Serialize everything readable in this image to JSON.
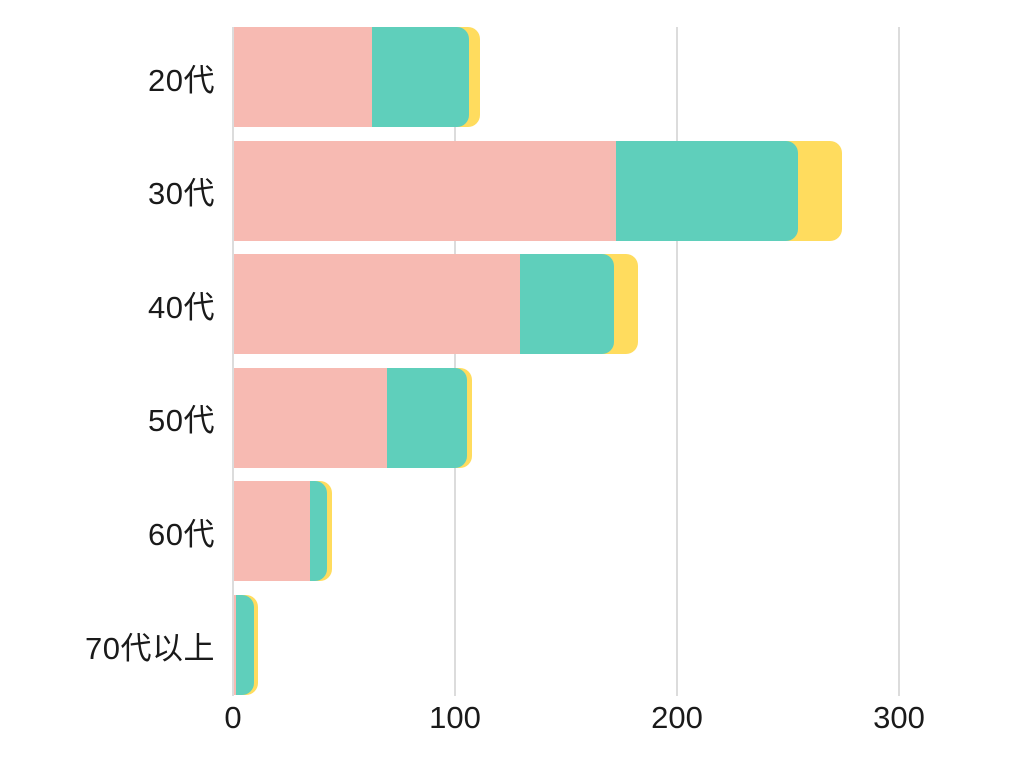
{
  "chart_data": {
    "type": "bar",
    "orientation": "horizontal",
    "stacked": true,
    "title": "",
    "categories": [
      "20代",
      "30代",
      "40代",
      "50代",
      "60代",
      "70代以上"
    ],
    "series": [
      {
        "name": "pink",
        "color": "#F7BAB2",
        "values": [
          62,
          172,
          129,
          69,
          34,
          1
        ]
      },
      {
        "name": "teal",
        "color": "#5FCFBB",
        "values": [
          44,
          82,
          42,
          36,
          8,
          8
        ]
      },
      {
        "name": "yellow",
        "color": "#FFDC5E",
        "values": [
          5,
          20,
          11,
          2,
          2,
          2
        ]
      }
    ],
    "totals": [
      111,
      274,
      182,
      107,
      44,
      11
    ],
    "xticks": [
      "0",
      "100",
      "200",
      "300"
    ],
    "xtick_values": [
      0,
      100,
      200,
      300
    ],
    "xlim": [
      0,
      300
    ],
    "grid": true,
    "legend": false
  },
  "colors": {
    "gridline": "#dcdcdc",
    "text": "#1a1a1a",
    "background": "#ffffff"
  }
}
